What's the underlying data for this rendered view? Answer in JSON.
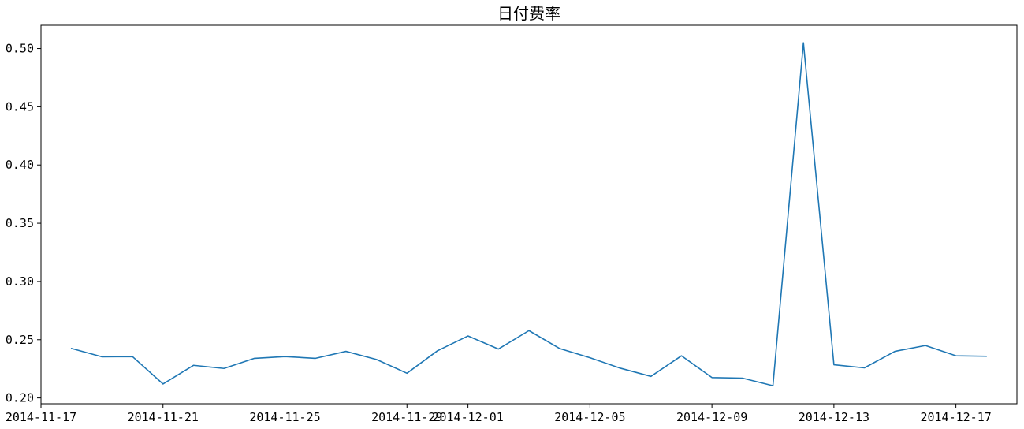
{
  "chart_data": {
    "type": "line",
    "title": "日付费率",
    "xlabel": "",
    "ylabel": "",
    "x": [
      "2014-11-18",
      "2014-11-19",
      "2014-11-20",
      "2014-11-21",
      "2014-11-22",
      "2014-11-23",
      "2014-11-24",
      "2014-11-25",
      "2014-11-26",
      "2014-11-27",
      "2014-11-28",
      "2014-11-29",
      "2014-11-30",
      "2014-12-01",
      "2014-12-02",
      "2014-12-03",
      "2014-12-04",
      "2014-12-05",
      "2014-12-06",
      "2014-12-07",
      "2014-12-08",
      "2014-12-09",
      "2014-12-10",
      "2014-12-11",
      "2014-12-12",
      "2014-12-13",
      "2014-12-14",
      "2014-12-15",
      "2014-12-16",
      "2014-12-17",
      "2014-12-18"
    ],
    "series": [
      {
        "values": [
          0.2425,
          0.2353,
          0.2355,
          0.212,
          0.228,
          0.2253,
          0.234,
          0.2355,
          0.234,
          0.24,
          0.233,
          0.2212,
          0.2405,
          0.2532,
          0.242,
          0.2578,
          0.2425,
          0.2345,
          0.2255,
          0.2185,
          0.2362,
          0.2175,
          0.217,
          0.2105,
          0.505,
          0.2285,
          0.2258,
          0.24,
          0.245,
          0.2362,
          0.2358
        ]
      }
    ],
    "xlim": [
      "2014-11-17",
      "2014-12-19"
    ],
    "ylim": [
      0.195,
      0.52
    ],
    "x_ticks": [
      "2014-11-17",
      "2014-11-21",
      "2014-11-25",
      "2014-11-29",
      "2014-12-01",
      "2014-12-05",
      "2014-12-09",
      "2014-12-13",
      "2014-12-17"
    ],
    "y_ticks": [
      "0.20",
      "0.25",
      "0.30",
      "0.35",
      "0.40",
      "0.45",
      "0.50"
    ],
    "grid": false,
    "legend": "none",
    "colors": {
      "series": "#1f77b4",
      "axis": "#000000",
      "background": "#ffffff"
    }
  }
}
